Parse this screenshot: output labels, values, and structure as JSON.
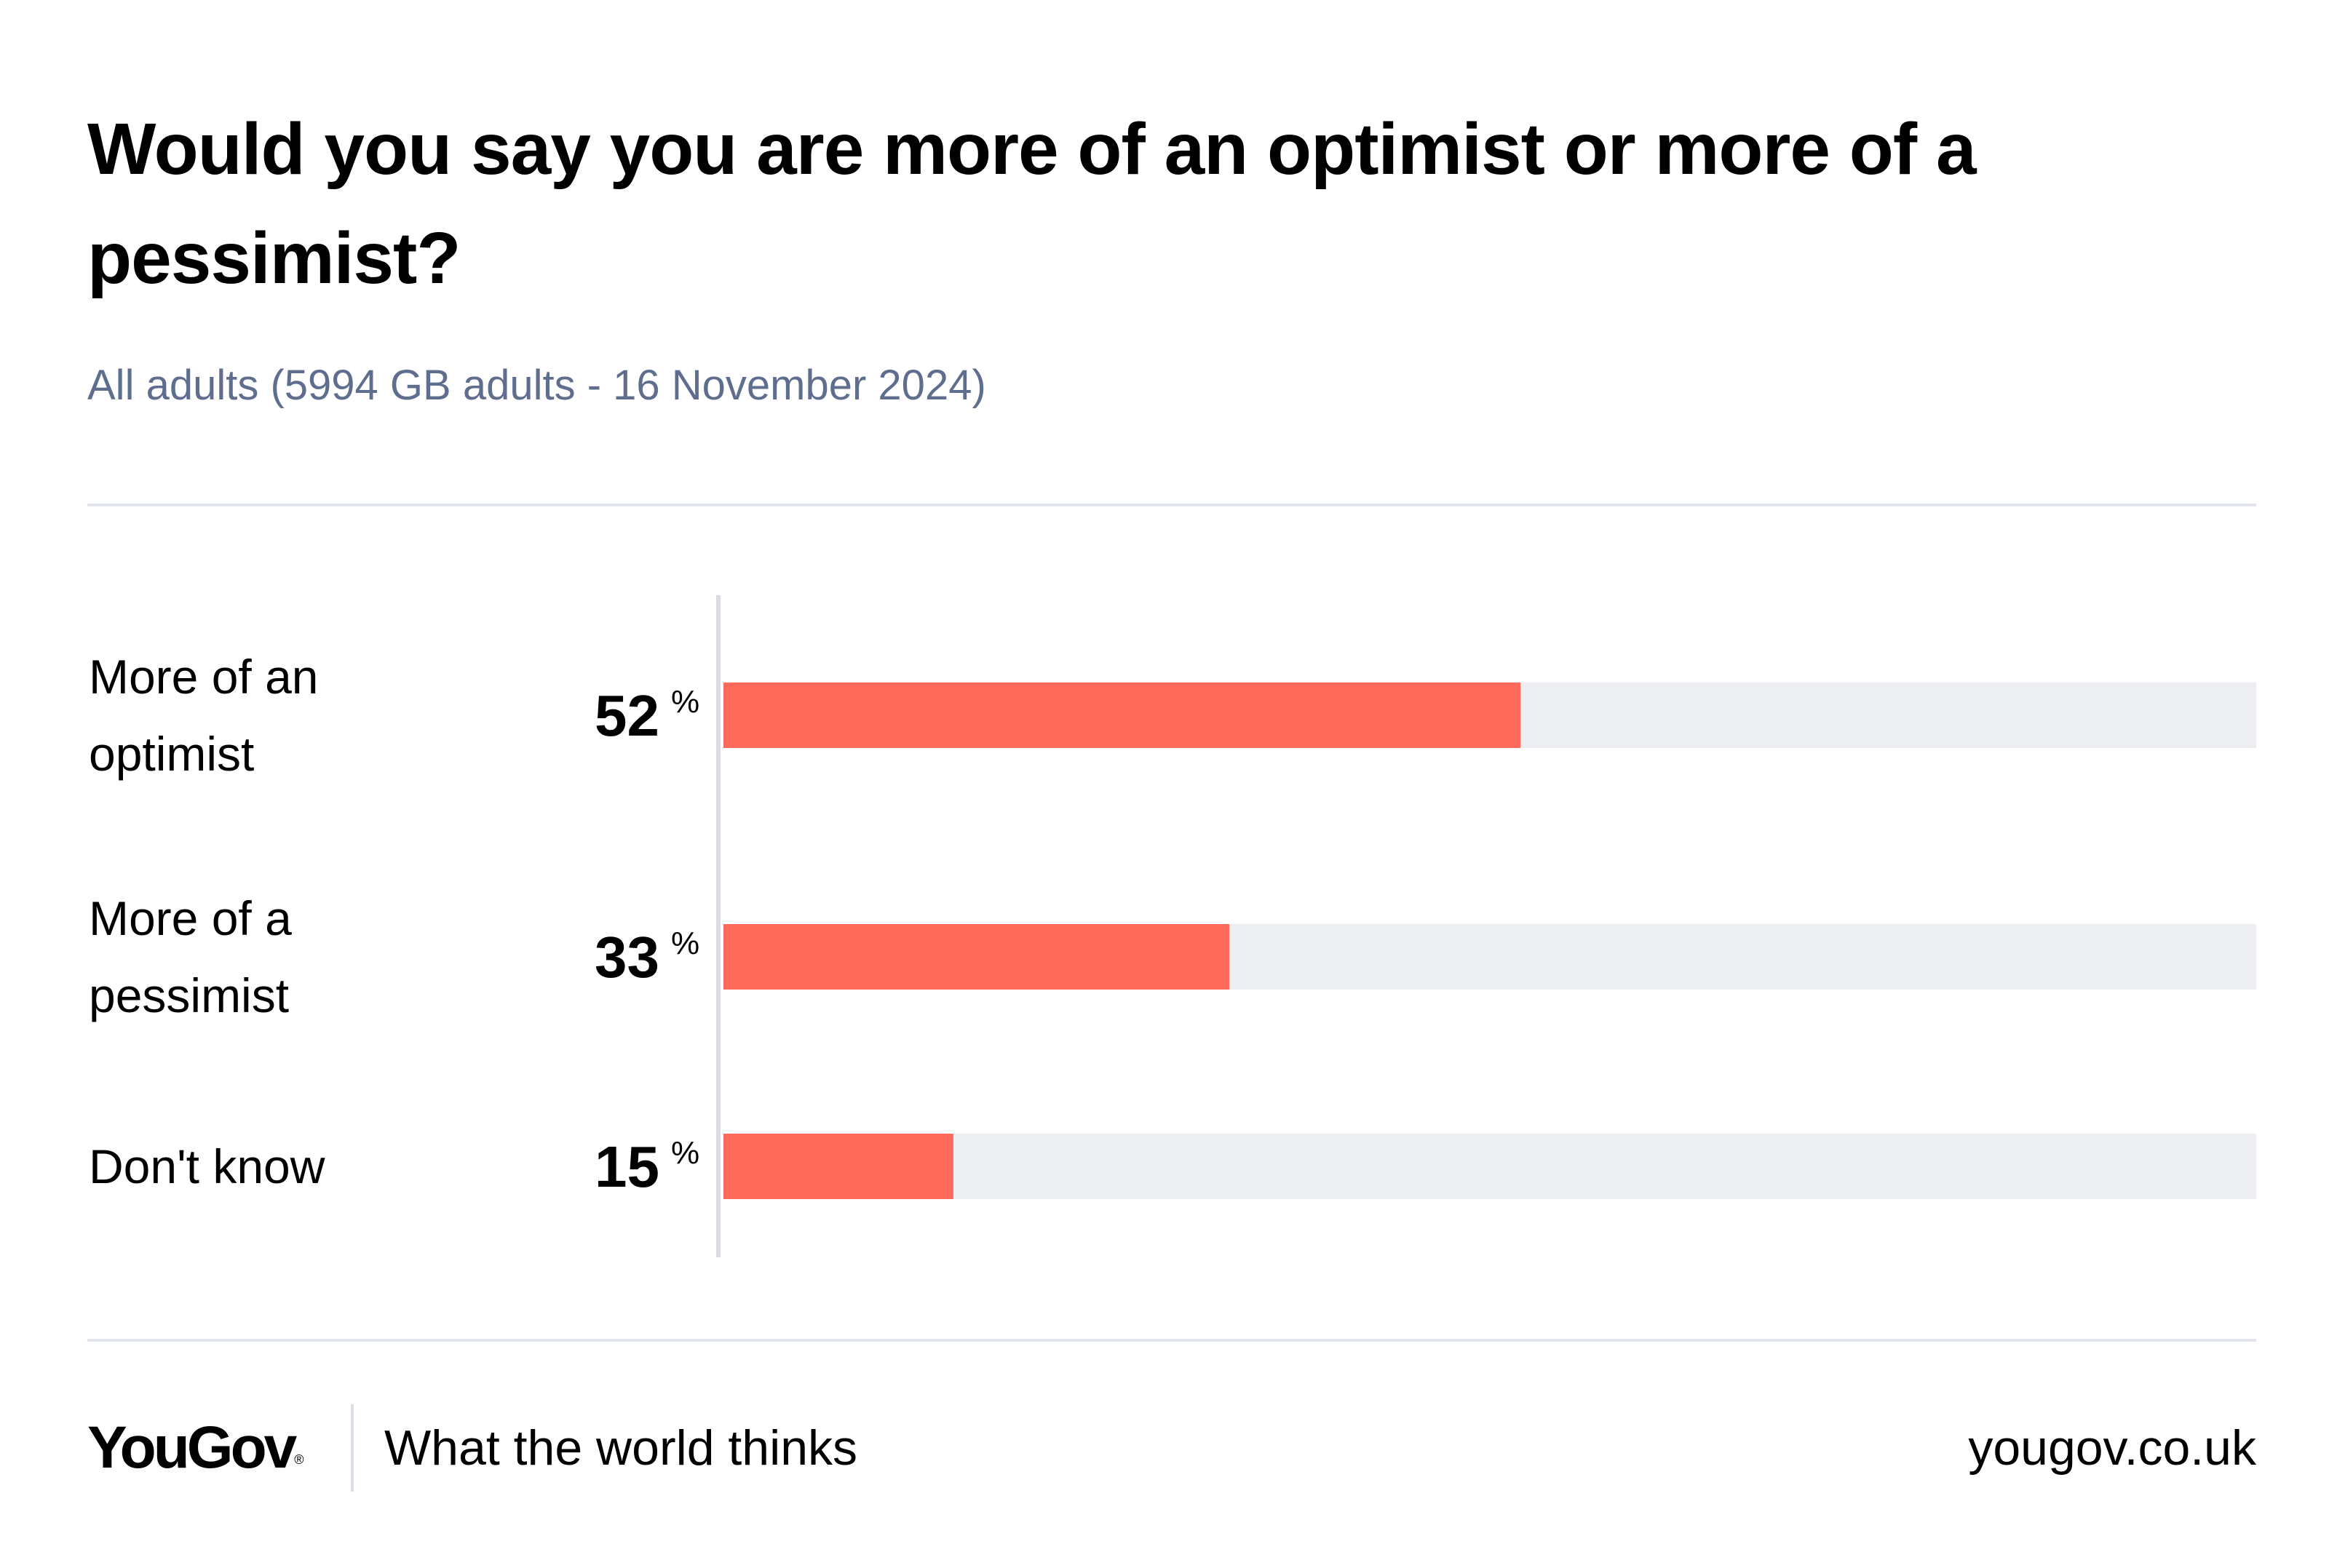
{
  "chart_data": {
    "type": "bar",
    "orientation": "horizontal",
    "title": "Would you say you are more of an optimist or more of a pessimist?",
    "subtitle": "All adults (5994 GB adults - 16 November 2024)",
    "categories": [
      [
        "More of an",
        "optimist"
      ],
      [
        "More of a",
        "pessimist"
      ],
      [
        "Don't know"
      ]
    ],
    "values": [
      52,
      33,
      15
    ],
    "value_suffix": "%",
    "xlim": [
      0,
      100
    ],
    "bar_color": "#ff6a5b",
    "track_color": "#edeef2",
    "axis_color": "#d9dce5"
  },
  "footer": {
    "brand": "YouGov",
    "brand_mark": "®",
    "tagline": "What the world thinks",
    "url": "yougov.co.uk"
  }
}
